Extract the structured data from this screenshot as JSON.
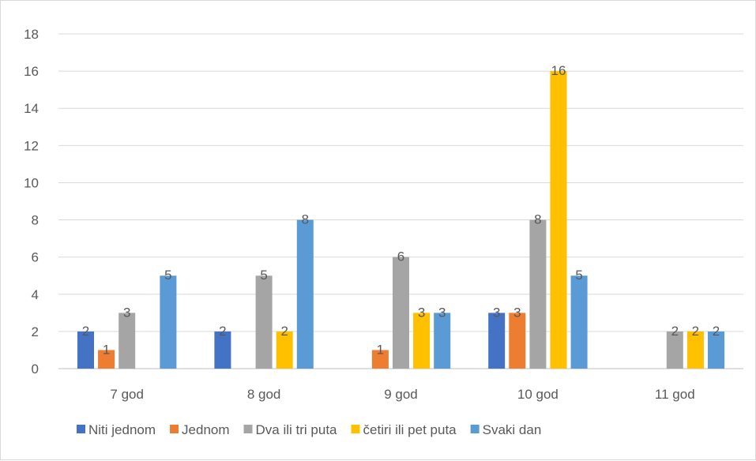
{
  "chart_data": {
    "type": "bar",
    "categories": [
      "7 god",
      "8 god",
      "9 god",
      "10 god",
      "11 god"
    ],
    "series": [
      {
        "name": "Niti jednom",
        "color": "#4472c4",
        "values": [
          2,
          2,
          0,
          3,
          0
        ]
      },
      {
        "name": "Jednom",
        "color": "#ed7d31",
        "values": [
          1,
          0,
          1,
          3,
          0
        ]
      },
      {
        "name": "Dva ili tri puta",
        "color": "#a5a5a5",
        "values": [
          3,
          5,
          6,
          8,
          2
        ]
      },
      {
        "name": "četiri ili pet puta",
        "color": "#ffc000",
        "values": [
          0,
          2,
          3,
          16,
          2
        ]
      },
      {
        "name": "Svaki dan",
        "color": "#5b9bd5",
        "values": [
          5,
          8,
          3,
          5,
          2
        ]
      }
    ],
    "data_labels": true,
    "ylim": [
      0,
      18
    ],
    "yticks": [
      0,
      2,
      4,
      6,
      8,
      10,
      12,
      14,
      16,
      18
    ],
    "grid": true,
    "legend_position": "bottom"
  }
}
